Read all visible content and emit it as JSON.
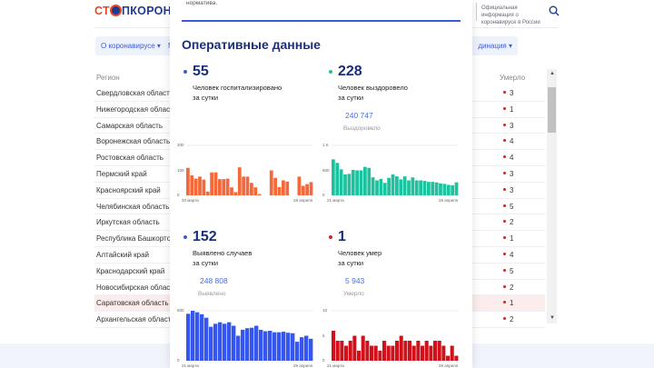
{
  "header": {
    "logo_text": "СТОПКОРОНАВИРУС",
    "logo_a": "СТ",
    "logo_b": "ПКОРОНАВ",
    "official_info": "Официальная информация о коронавирусе в России",
    "search_icon": "search-icon"
  },
  "nav": {
    "pill1": "О коронавирусе ▾",
    "pill2": "М",
    "pill3": "динация ▾"
  },
  "table": {
    "col_region": "Регион",
    "col_died": "Умерло",
    "rows": [
      {
        "region": "Свердловская область",
        "died": "3"
      },
      {
        "region": "Нижегородская область",
        "died": "1"
      },
      {
        "region": "Самарская область",
        "died": "3"
      },
      {
        "region": "Воронежская область",
        "died": "4"
      },
      {
        "region": "Ростовская область",
        "died": "4"
      },
      {
        "region": "Пермский край",
        "died": "3"
      },
      {
        "region": "Красноярский край",
        "died": "3"
      },
      {
        "region": "Челябинская область",
        "died": "5"
      },
      {
        "region": "Иркутская область",
        "died": "2"
      },
      {
        "region": "Республика Башкортостан",
        "died": "1"
      },
      {
        "region": "Алтайский край",
        "died": "4"
      },
      {
        "region": "Краснодарский край",
        "died": "5"
      },
      {
        "region": "Новосибирская область",
        "died": "2"
      },
      {
        "region": "Саратовская область",
        "died": "1"
      },
      {
        "region": "Архангельская область",
        "died": "2"
      }
    ]
  },
  "modal": {
    "prev_text": "норматива.",
    "title": "Оперативные данные",
    "stats": [
      {
        "value": "55",
        "label1": "Человек госпитализировано",
        "label2": "за сутки",
        "color": "#3d5bd9"
      },
      {
        "value": "228",
        "label1": "Человек выздоровело",
        "label2": "за сутки",
        "total": "240 747",
        "total_label": "Выздоровело",
        "color": "#1dc39e"
      },
      {
        "value": "152",
        "label1": "Выявлено случаев",
        "label2": "за сутки",
        "total": "248 808",
        "total_label": "Выявлено",
        "color": "#3d5bd9"
      },
      {
        "value": "1",
        "label1": "Человек умер",
        "label2": "за сутки",
        "total": "5 943",
        "total_label": "Умерло",
        "color": "#c62828"
      }
    ]
  },
  "chart_data": [
    {
      "type": "bar",
      "name": "hospitalized",
      "color": "#f4683a",
      "ylim": [
        0,
        200
      ],
      "yticks": [
        "0",
        "100",
        "200"
      ],
      "xstart": "20 марта",
      "xend": "29 апреля",
      "values": [
        110,
        80,
        67,
        75,
        63,
        15,
        92,
        92,
        65,
        65,
        67,
        32,
        13,
        112,
        75,
        75,
        50,
        32,
        5,
        0,
        0,
        100,
        70,
        33,
        60,
        55,
        0,
        0,
        75,
        38,
        45,
        53
      ]
    },
    {
      "type": "bar",
      "name": "recovered",
      "color": "#1dc39e",
      "ylim": [
        0,
        1000
      ],
      "yticks": [
        "0",
        "500",
        "1 K"
      ],
      "xstart": "21 марта",
      "xend": "29 апреля",
      "values": [
        720,
        650,
        520,
        420,
        430,
        510,
        500,
        500,
        570,
        550,
        360,
        300,
        330,
        250,
        350,
        420,
        380,
        320,
        380,
        300,
        360,
        300,
        300,
        290,
        270,
        270,
        260,
        240,
        230,
        210,
        200,
        260
      ]
    },
    {
      "type": "bar",
      "name": "cases",
      "color": "#3557f0",
      "ylim": [
        0,
        500
      ],
      "yticks": [
        "0",
        "500"
      ],
      "xstart": "21 марта",
      "xend": "29 апреля",
      "values": [
        470,
        500,
        485,
        465,
        430,
        340,
        370,
        385,
        370,
        385,
        350,
        250,
        310,
        325,
        330,
        350,
        310,
        295,
        300,
        285,
        285,
        290,
        280,
        275,
        190,
        235,
        250,
        220
      ]
    },
    {
      "type": "bar",
      "name": "deaths",
      "color": "#d0101a",
      "ylim": [
        0,
        10
      ],
      "yticks": [
        "0",
        "5",
        "10"
      ],
      "xstart": "21 марта",
      "xend": "29 апреля",
      "values": [
        6,
        4,
        4,
        3,
        4,
        5,
        2,
        5,
        4,
        3,
        3,
        2,
        4,
        3,
        3,
        4,
        5,
        4,
        4,
        3,
        4,
        3,
        4,
        3,
        4,
        4,
        3,
        1,
        3,
        1
      ]
    }
  ]
}
